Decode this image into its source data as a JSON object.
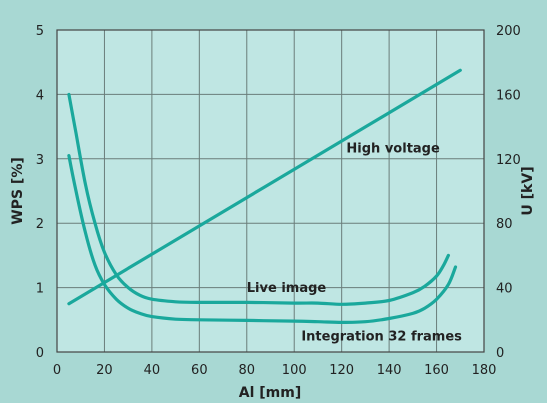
{
  "chart_data": {
    "type": "line",
    "xlabel": "Al [mm]",
    "ylabel_left": "WPS [%]",
    "ylabel_right": "U [kV]",
    "xlim": [
      0,
      180
    ],
    "ylim_left": [
      0,
      5
    ],
    "ylim_right": [
      0,
      200
    ],
    "x_ticks": [
      0,
      20,
      40,
      60,
      80,
      100,
      120,
      140,
      160,
      180
    ],
    "y_ticks_left": [
      0,
      1,
      2,
      3,
      4,
      5
    ],
    "y_ticks_right": [
      0,
      40,
      80,
      120,
      160,
      200
    ],
    "grid": true,
    "colors": {
      "background": "#a8d8d3",
      "plot_area": "#bfe6e3",
      "curve": "#1aa89c"
    },
    "series": [
      {
        "name": "Live image",
        "axis": "left",
        "x": [
          5,
          8,
          12,
          16,
          20,
          25,
          30,
          35,
          40,
          50,
          60,
          80,
          100,
          110,
          120,
          130,
          140,
          150,
          155,
          160,
          163,
          165
        ],
        "y": [
          4.0,
          3.4,
          2.6,
          2.0,
          1.55,
          1.2,
          1.0,
          0.88,
          0.82,
          0.78,
          0.77,
          0.77,
          0.76,
          0.76,
          0.74,
          0.76,
          0.8,
          0.92,
          1.02,
          1.18,
          1.35,
          1.5
        ]
      },
      {
        "name": "Integration 32 frames",
        "axis": "left",
        "x": [
          5,
          8,
          12,
          16,
          20,
          25,
          30,
          35,
          40,
          50,
          60,
          80,
          100,
          110,
          120,
          130,
          140,
          150,
          155,
          160,
          165,
          168
        ],
        "y": [
          3.05,
          2.5,
          1.85,
          1.35,
          1.05,
          0.82,
          0.68,
          0.6,
          0.55,
          0.51,
          0.5,
          0.49,
          0.48,
          0.47,
          0.46,
          0.47,
          0.52,
          0.6,
          0.68,
          0.82,
          1.05,
          1.32
        ]
      },
      {
        "name": "High voltage",
        "axis": "right",
        "x": [
          5,
          170
        ],
        "y": [
          30,
          175
        ]
      }
    ],
    "annotations": [
      {
        "text": "High voltage",
        "x": 122,
        "y": 3.1
      },
      {
        "text": "Live image",
        "x": 80,
        "y": 0.93
      },
      {
        "text": "Integration 32 frames",
        "x": 103,
        "y": 0.18
      }
    ]
  }
}
